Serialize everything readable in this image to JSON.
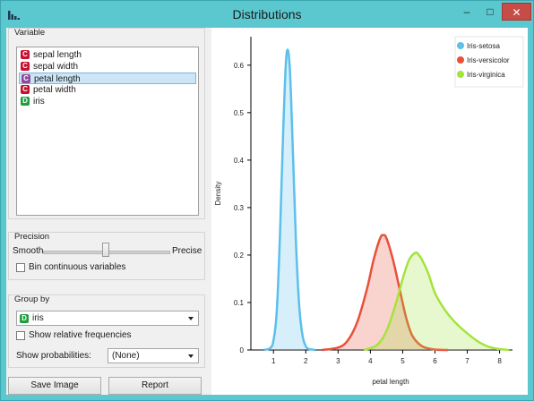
{
  "window": {
    "title": "Distributions",
    "minimize_glyph": "–",
    "maximize_glyph": "□",
    "close_glyph": "✕"
  },
  "variable": {
    "title": "Variable",
    "items": [
      {
        "label": "sepal length",
        "type": "C"
      },
      {
        "label": "sepal width",
        "type": "C"
      },
      {
        "label": "petal length",
        "type": "C",
        "selected": true
      },
      {
        "label": "petal width",
        "type": "C"
      },
      {
        "label": "iris",
        "type": "D"
      }
    ]
  },
  "precision": {
    "title": "Precision",
    "smooth_label": "Smooth",
    "precise_label": "Precise",
    "slider_level_pct": 53,
    "bin_label": "Bin continuous variables",
    "bin_checked": false
  },
  "group_by": {
    "title": "Group by",
    "selected_badge": "D",
    "selected_value": "iris",
    "relative_label": "Show relative frequencies",
    "relative_checked": false,
    "probabilities_label": "Show probabilities:",
    "probabilities_value": "(None)"
  },
  "buttons": {
    "save_image": "Save Image",
    "report": "Report"
  },
  "colors": {
    "setosa": "#5bc0eb",
    "versicolor": "#e8503a",
    "virginica": "#a5e33c",
    "title_bar": "#5bc8cf",
    "close_button": "#c74c46"
  },
  "chart_data": {
    "type": "area",
    "xlabel": "petal length",
    "ylabel": "Density",
    "xlim": [
      0.3,
      8.4
    ],
    "ylim": [
      0,
      0.66
    ],
    "xticks": [
      1,
      2,
      3,
      4,
      5,
      6,
      7,
      8
    ],
    "yticks": [
      0,
      0.1,
      0.2,
      0.3,
      0.4,
      0.5,
      0.6
    ],
    "legend_position": "top-right",
    "series": [
      {
        "name": "Iris-setosa",
        "color": "#5bc0eb",
        "x": [
          0.7,
          0.9,
          1.0,
          1.1,
          1.2,
          1.3,
          1.4,
          1.5,
          1.6,
          1.7,
          1.8,
          1.9,
          2.0,
          2.1,
          2.3
        ],
        "y": [
          0.0,
          0.004,
          0.02,
          0.08,
          0.24,
          0.46,
          0.62,
          0.6,
          0.42,
          0.22,
          0.09,
          0.03,
          0.008,
          0.002,
          0.0
        ]
      },
      {
        "name": "Iris-versicolor",
        "color": "#e8503a",
        "x": [
          2.5,
          3.0,
          3.3,
          3.6,
          3.9,
          4.1,
          4.3,
          4.4,
          4.5,
          4.7,
          4.9,
          5.1,
          5.3,
          5.6,
          6.0,
          6.4
        ],
        "y": [
          0.0,
          0.005,
          0.02,
          0.06,
          0.13,
          0.19,
          0.235,
          0.242,
          0.235,
          0.19,
          0.13,
          0.07,
          0.03,
          0.008,
          0.001,
          0.0
        ]
      },
      {
        "name": "Iris-virginica",
        "color": "#a5e33c",
        "x": [
          3.8,
          4.2,
          4.5,
          4.8,
          5.0,
          5.2,
          5.4,
          5.5,
          5.6,
          5.8,
          6.0,
          6.3,
          6.6,
          7.0,
          7.4,
          7.8,
          8.3
        ],
        "y": [
          0.0,
          0.01,
          0.04,
          0.1,
          0.15,
          0.19,
          0.205,
          0.2,
          0.19,
          0.16,
          0.12,
          0.085,
          0.06,
          0.035,
          0.015,
          0.004,
          0.0
        ]
      }
    ]
  }
}
